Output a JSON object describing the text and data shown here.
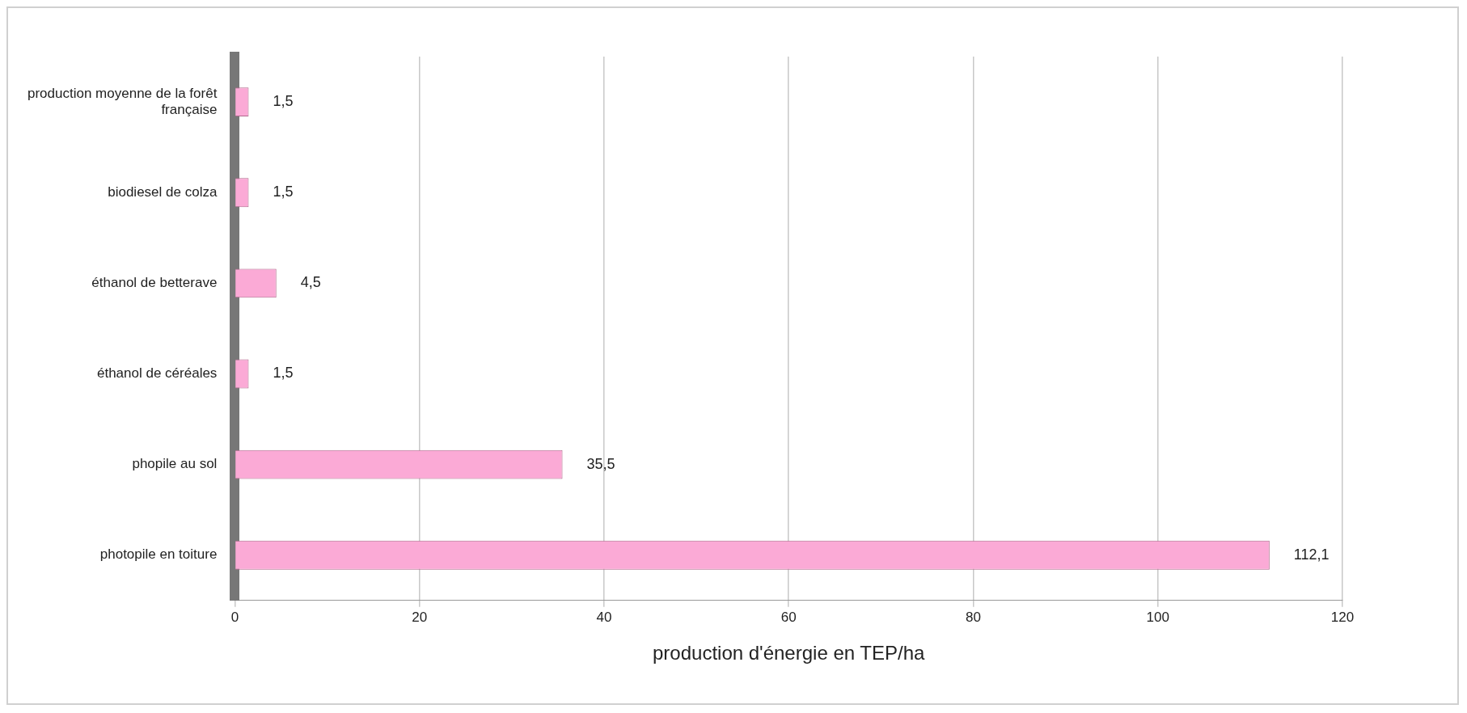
{
  "chart_data": {
    "type": "bar",
    "orientation": "horizontal",
    "categories": [
      "production moyenne de la forêt française",
      "biodiesel de colza",
      "éthanol de betterave",
      "éthanol de céréales",
      "phopile au sol",
      "photopile en toiture"
    ],
    "values": [
      1.5,
      1.5,
      4.5,
      1.5,
      35.5,
      112.1
    ],
    "value_labels": [
      "1,5",
      "1,5",
      "4,5",
      "1,5",
      "35,5",
      "112,1"
    ],
    "color": "#fbaad6",
    "xlim": [
      0,
      120
    ],
    "xticks": [
      0,
      20,
      40,
      60,
      80,
      100,
      120
    ],
    "xlabel": "production d'énergie en TEP/ha",
    "grid": "x",
    "legend": false
  }
}
